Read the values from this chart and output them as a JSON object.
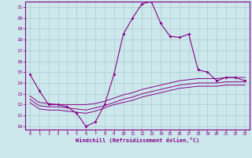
{
  "xlabel": "Windchill (Refroidissement éolien,°C)",
  "bg_color": "#cce8ec",
  "grid_color": "#aacccc",
  "line_color": "#880088",
  "xlim": [
    -0.5,
    23.5
  ],
  "ylim": [
    9.7,
    21.5
  ],
  "yticks": [
    10,
    11,
    12,
    13,
    14,
    15,
    16,
    17,
    18,
    19,
    20,
    21
  ],
  "xticks": [
    0,
    1,
    2,
    3,
    4,
    5,
    6,
    7,
    8,
    9,
    10,
    11,
    12,
    13,
    14,
    15,
    16,
    17,
    18,
    19,
    20,
    21,
    22,
    23
  ],
  "main_line_x": [
    0,
    1,
    2,
    3,
    4,
    5,
    6,
    7,
    8,
    9,
    10,
    11,
    12,
    13,
    14,
    15,
    16,
    17,
    18,
    19,
    20,
    21,
    22,
    23
  ],
  "main_line_y": [
    14.8,
    13.3,
    12.0,
    12.0,
    11.8,
    11.2,
    10.0,
    10.4,
    12.0,
    14.8,
    18.5,
    20.0,
    21.3,
    21.5,
    19.5,
    18.3,
    18.2,
    18.5,
    15.2,
    15.0,
    14.2,
    14.5,
    14.5,
    14.2
  ],
  "line2_x": [
    0,
    1,
    2,
    3,
    4,
    5,
    6,
    7,
    8,
    9,
    10,
    11,
    12,
    13,
    14,
    15,
    16,
    17,
    18,
    19,
    20,
    21,
    22,
    23
  ],
  "line2_y": [
    12.8,
    12.2,
    12.1,
    12.0,
    12.0,
    12.0,
    12.0,
    12.1,
    12.3,
    12.6,
    12.9,
    13.1,
    13.4,
    13.6,
    13.8,
    14.0,
    14.2,
    14.3,
    14.4,
    14.4,
    14.4,
    14.5,
    14.5,
    14.5
  ],
  "line3_x": [
    0,
    1,
    2,
    3,
    4,
    5,
    6,
    7,
    8,
    9,
    10,
    11,
    12,
    13,
    14,
    15,
    16,
    17,
    18,
    19,
    20,
    21,
    22,
    23
  ],
  "line3_y": [
    12.5,
    11.9,
    11.8,
    11.8,
    11.7,
    11.6,
    11.5,
    11.7,
    11.9,
    12.2,
    12.5,
    12.7,
    13.0,
    13.2,
    13.4,
    13.6,
    13.8,
    13.9,
    14.0,
    14.0,
    14.0,
    14.1,
    14.1,
    14.1
  ],
  "line4_x": [
    0,
    1,
    2,
    3,
    4,
    5,
    6,
    7,
    8,
    9,
    10,
    11,
    12,
    13,
    14,
    15,
    16,
    17,
    18,
    19,
    20,
    21,
    22,
    23
  ],
  "line4_y": [
    12.2,
    11.6,
    11.5,
    11.5,
    11.4,
    11.3,
    11.2,
    11.4,
    11.7,
    12.0,
    12.2,
    12.4,
    12.7,
    12.9,
    13.1,
    13.3,
    13.5,
    13.6,
    13.7,
    13.7,
    13.7,
    13.8,
    13.8,
    13.8
  ]
}
